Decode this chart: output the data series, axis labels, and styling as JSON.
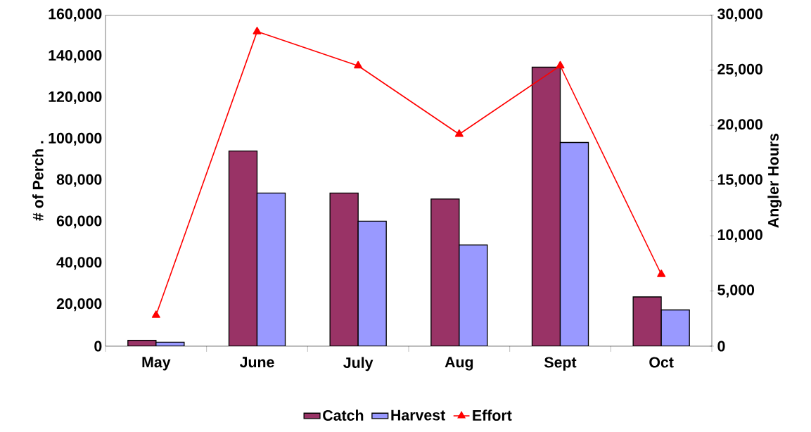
{
  "chart_data": {
    "type": "bar",
    "ylabel": "# of Perch .",
    "y2label": "Angler Hours",
    "categories": [
      "May",
      "June",
      "July",
      "Aug",
      "Sept",
      "Oct"
    ],
    "series": [
      {
        "name": "Catch",
        "type": "bar",
        "color": "#993366",
        "values": [
          2800,
          94300,
          74000,
          71100,
          134800,
          23800
        ]
      },
      {
        "name": "Harvest",
        "type": "bar",
        "color": "#9999ff",
        "values": [
          1900,
          74000,
          60400,
          48900,
          98400,
          17500
        ]
      },
      {
        "name": "Effort",
        "type": "line",
        "axis": "y2",
        "color": "#ff0000",
        "marker": "triangle",
        "values": [
          2800,
          28500,
          25400,
          19200,
          25400,
          6500
        ]
      }
    ],
    "ylim": [
      0,
      160000
    ],
    "yticks": [
      {
        "value": 0,
        "label": "0"
      },
      {
        "value": 20000,
        "label": "20,000"
      },
      {
        "value": 40000,
        "label": "40,000"
      },
      {
        "value": 60000,
        "label": "60,000"
      },
      {
        "value": 80000,
        "label": "80,000"
      },
      {
        "value": 100000,
        "label": "100,000"
      },
      {
        "value": 120000,
        "label": "120,000"
      },
      {
        "value": 140000,
        "label": "140,000"
      },
      {
        "value": 160000,
        "label": "160,000"
      }
    ],
    "y2lim": [
      0,
      30000
    ],
    "y2ticks": [
      {
        "value": 0,
        "label": "0"
      },
      {
        "value": 5000,
        "label": "5,000"
      },
      {
        "value": 10000,
        "label": "10,000"
      },
      {
        "value": 15000,
        "label": "15,000"
      },
      {
        "value": 20000,
        "label": "20,000"
      },
      {
        "value": 25000,
        "label": "25,000"
      },
      {
        "value": 30000,
        "label": "30,000"
      }
    ],
    "grid": false,
    "legend": "bottom"
  }
}
